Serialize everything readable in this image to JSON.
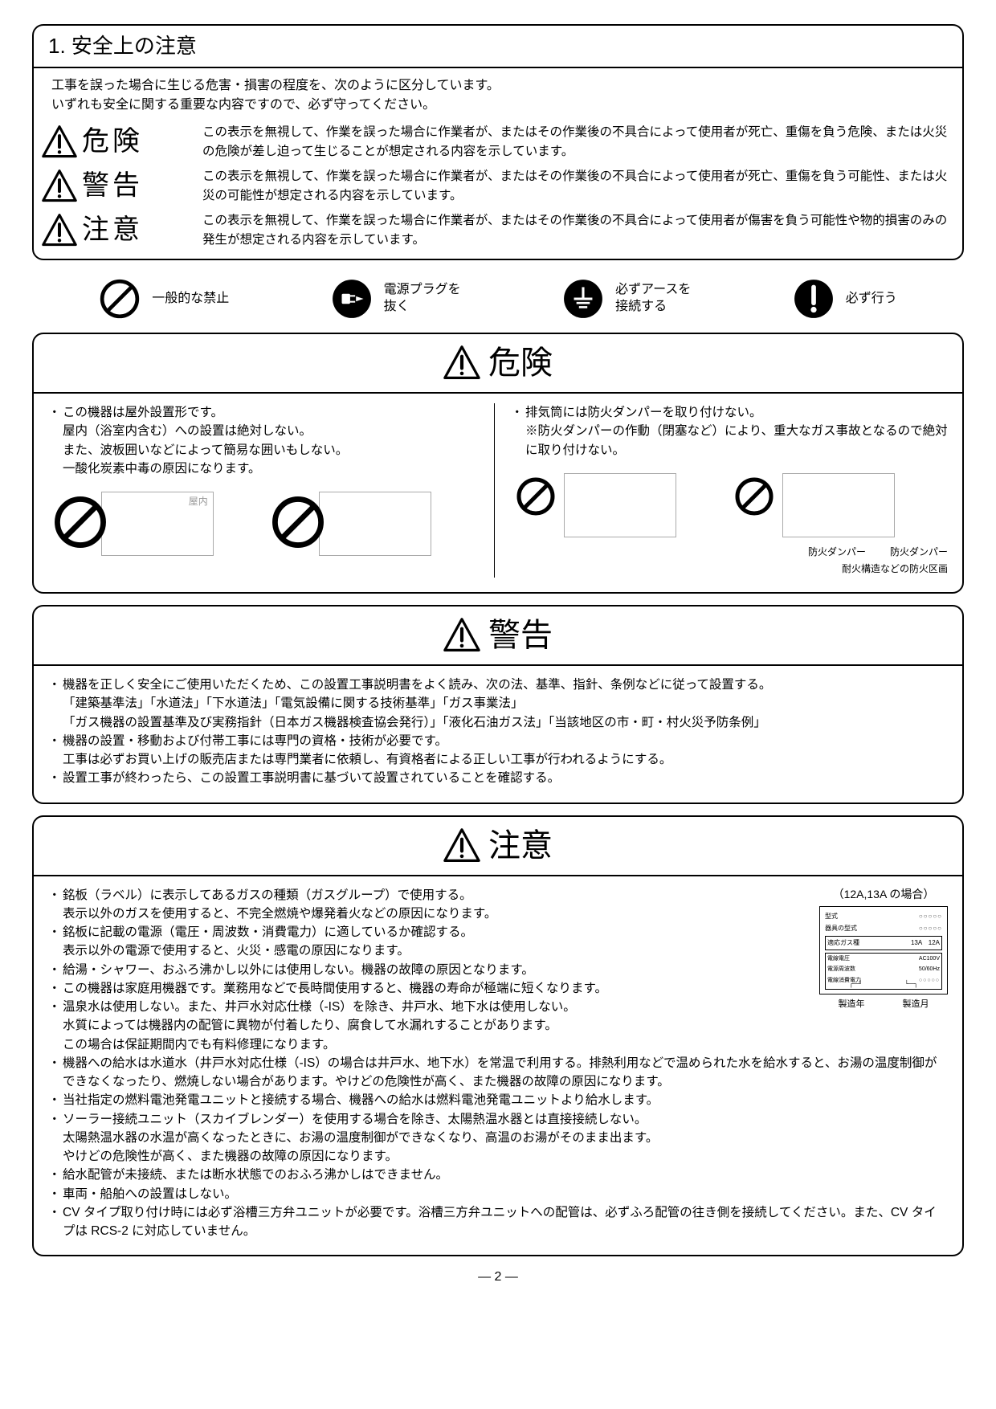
{
  "page_number": "2",
  "title": "1. 安全上の注意",
  "intro": [
    "工事を誤った場合に生じる危害・損害の程度を、次のように区分しています。",
    "いずれも安全に関する重要な内容ですので、必ず守ってください。"
  ],
  "warning_levels": [
    {
      "label": "危険",
      "desc": "この表示を無視して、作業を誤った場合に作業者が、またはその作業後の不具合によって使用者が死亡、重傷を負う危険、または火災の危険が差し迫って生じることが想定される内容を示しています。"
    },
    {
      "label": "警告",
      "desc": "この表示を無視して、作業を誤った場合に作業者が、またはその作業後の不具合によって使用者が死亡、重傷を負う可能性、または火災の可能性が想定される内容を示しています。"
    },
    {
      "label": "注意",
      "desc": "この表示を無視して、作業を誤った場合に作業者が、またはその作業後の不具合によって使用者が傷害を負う可能性や物的損害のみの発生が想定される内容を示しています。"
    }
  ],
  "legend": [
    {
      "icon": "prohibit",
      "label": "一般的な禁止"
    },
    {
      "icon": "unplug",
      "label": "電源プラグを\n抜く"
    },
    {
      "icon": "ground",
      "label": "必ずアースを\n接続する"
    },
    {
      "icon": "bang",
      "label": "必ず行う"
    }
  ],
  "danger": {
    "header": "危険",
    "left": {
      "bullet": "・",
      "lines": [
        "この機器は屋外設置形です。",
        "屋内（浴室内含む）への設置は絶対しない。",
        "また、波板囲いなどによって簡易な囲いもしない。",
        "一酸化炭素中毒の原因になります。"
      ],
      "indoor_label": "屋内"
    },
    "right": {
      "bullet": "・",
      "lines": [
        "排気筒には防火ダンパーを取り付けない。",
        "※防火ダンパーの作動（閉塞など）により、重大なガス事故となるので絶対に取り付けない。"
      ],
      "damper_labels": [
        "防火ダンパー",
        "防火ダンパー",
        "耐火構造などの防火区画"
      ]
    }
  },
  "keikoku": {
    "header": "警告",
    "items": [
      {
        "bullet": "・",
        "text": "機器を正しく安全にご使用いただくため、この設置工事説明書をよく読み、次の法、基準、指針、条例などに従って設置する。",
        "follow": [
          "「建築基準法」「水道法」「下水道法」「電気設備に関する技術基準」「ガス事業法」",
          "「ガス機器の設置基準及び実務指針（日本ガス機器検査協会発行）」「液化石油ガス法」「当該地区の市・町・村火災予防条例」"
        ]
      },
      {
        "bullet": "・",
        "text": "機器の設置・移動および付帯工事には専門の資格・技術が必要です。",
        "follow": [
          "工事は必ずお買い上げの販売店または専門業者に依頼し、有資格者による正しい工事が行われるようにする。"
        ]
      },
      {
        "bullet": "・",
        "text": "設置工事が終わったら、この設置工事説明書に基づいて設置されていることを確認する。"
      }
    ]
  },
  "chuui": {
    "header": "注意",
    "rating_caption": "（12A,13A の場合）",
    "plate": {
      "row1": [
        "型式",
        "○○○○○"
      ],
      "row2": [
        "器具の型式",
        "○○○○○"
      ],
      "row3l": "適応ガス種",
      "row3r": "13A　12A",
      "row4l": "電線電圧",
      "row4r": "AC100V",
      "row5l": "電源周波数",
      "row5r": "50/60Hz",
      "row6l": "電線消費電力",
      "row6r": "○○○○○",
      "year": "製造年",
      "month": "製造月"
    },
    "items": [
      {
        "bullet": "・",
        "text": "銘板（ラベル）に表示してあるガスの種類（ガスグループ）で使用する。",
        "follow": [
          "表示以外のガスを使用すると、不完全燃焼や爆発着火などの原因になります。"
        ]
      },
      {
        "bullet": "・",
        "text": "銘板に記載の電源（電圧・周波数・消費電力）に適しているか確認する。",
        "follow": [
          "表示以外の電源で使用すると、火災・感電の原因になります。"
        ]
      },
      {
        "bullet": "・",
        "text": "給湯・シャワー、おふろ沸かし以外には使用しない。機器の故障の原因となります。"
      },
      {
        "bullet": "・",
        "text": "この機器は家庭用機器です。業務用などで長時間使用すると、機器の寿命が極端に短くなります。"
      },
      {
        "bullet": "・",
        "text": "温泉水は使用しない。また、井戸水対応仕様（-IS）を除き、井戸水、地下水は使用しない。",
        "follow": [
          "水質によっては機器内の配管に異物が付着したり、腐食して水漏れすることがあります。",
          "この場合は保証期間内でも有料修理になります。"
        ]
      },
      {
        "bullet": "・",
        "text": "機器への給水は水道水（井戸水対応仕様（-IS）の場合は井戸水、地下水）を常温で利用する。排熱利用などで温められた水を給水すると、お湯の温度制御ができなくなったり、燃焼しない場合があります。やけどの危険性が高く、また機器の故障の原因になります。"
      },
      {
        "bullet": "・",
        "text": "当社指定の燃料電池発電ユニットと接続する場合、機器への給水は燃料電池発電ユニットより給水します。"
      },
      {
        "bullet": "・",
        "text": "ソーラー接続ユニット（スカイブレンダー）を使用する場合を除き、太陽熱温水器とは直接接続しない。",
        "follow": [
          "太陽熱温水器の水温が高くなったときに、お湯の温度制御ができなくなり、高温のお湯がそのまま出ます。",
          "やけどの危険性が高く、また機器の故障の原因になります。"
        ]
      },
      {
        "bullet": "・",
        "text": "給水配管が未接続、または断水状態でのおふろ沸かしはできません。"
      },
      {
        "bullet": "・",
        "text": "車両・船舶への設置はしない。"
      },
      {
        "bullet": "・",
        "text": "CV タイプ取り付け時には必ず浴槽三方弁ユニットが必要です。浴槽三方弁ユニットへの配管は、必ずふろ配管の往き側を接続してください。また、CV タイプは RCS-2 に対応していません。"
      }
    ]
  }
}
